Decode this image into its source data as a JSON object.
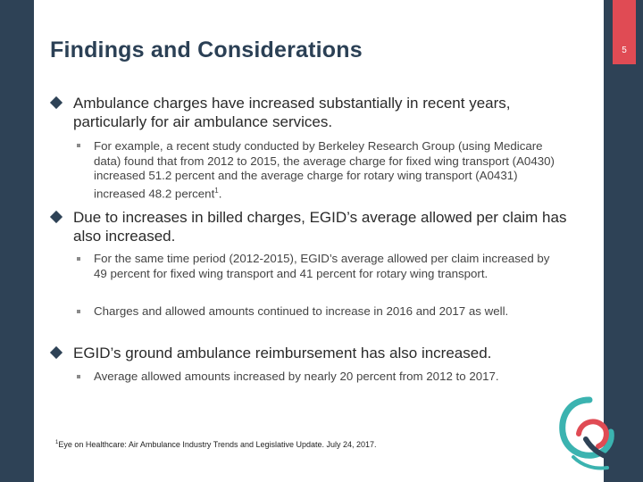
{
  "slide": {
    "page_number": "5",
    "title": "Findings and Considerations",
    "colors": {
      "sidebar": "#2e4256",
      "page_tab": "#e04b54",
      "title": "#2b4055",
      "logo_teal": "#3bb3b0",
      "logo_red": "#e04b54",
      "logo_navy": "#2e4256"
    }
  },
  "bullets": [
    {
      "text": "Ambulance charges have increased substantially in recent years, particularly for air ambulance services.",
      "sub": [
        "For example, a recent study conducted by Berkeley Research Group (using Medicare data) found that from 2012 to 2015, the average charge for fixed wing transport (A0430) increased 51.2 percent and the average charge for rotary wing transport (A0431) increased 48.2 percent"
      ],
      "sub_footnote_mark": "1",
      "sub_end": "."
    },
    {
      "text": "Due to increases in billed charges, EGID’s average allowed per claim has also increased.",
      "sub": [
        "For the same time period (2012-2015), EGID’s average allowed per claim increased by 49 percent for fixed wing transport and 41 percent for rotary wing transport.",
        "Charges and allowed amounts continued to increase in 2016 and 2017 as well."
      ]
    },
    {
      "text": "EGID’s ground ambulance reimbursement has also increased.",
      "sub": [
        "Average allowed amounts increased by nearly 20 percent from 2012 to 2017."
      ]
    }
  ],
  "footnote": {
    "mark": "1",
    "text": "Eye on Healthcare: Air Ambulance Industry Trends and Legislative Update. July 24, 2017."
  },
  "icons": {
    "bullet_l1": "diamond-bullet-icon",
    "bullet_l2": "square-bullet-icon",
    "logo": "egid-swirl-logo"
  }
}
